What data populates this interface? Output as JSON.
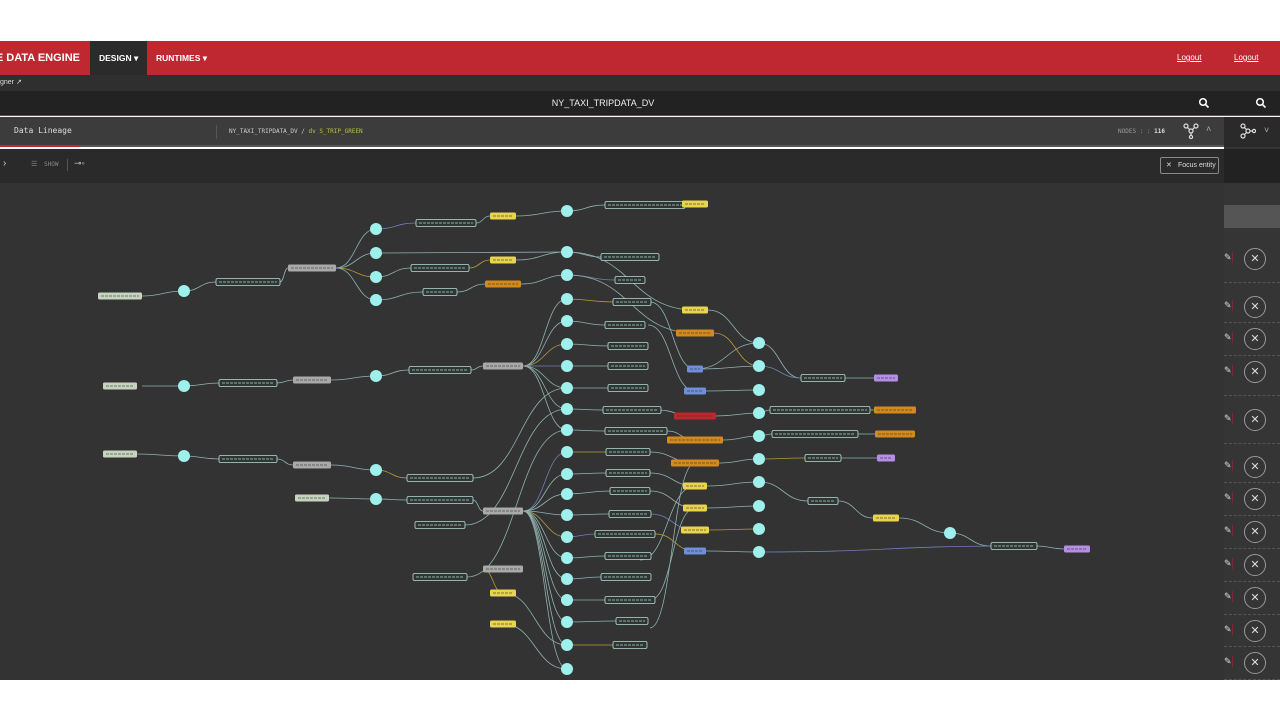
{
  "header": {
    "brand": "AGILE DATA ENGINE",
    "nav": [
      {
        "label": "DESIGN ▾",
        "active": true
      },
      {
        "label": "RUNTIMES ▾",
        "active": false
      }
    ],
    "logout_links": [
      "Logout",
      "Logout"
    ]
  },
  "subbar": {
    "text": "gner"
  },
  "titlebar": {
    "title": "NY_TAXI_TRIPDATA_DV"
  },
  "lineage": {
    "tab": "Data Lineage",
    "breadcrumb_root": "NY_TAXI_TRIPDATA_DV",
    "breadcrumb_sep": " / ",
    "breadcrumb_leaf": "dv S_TRIP_GREEN",
    "nodes_label": "NODES : : ",
    "nodes_count": "116"
  },
  "toolbar": {
    "show_label": "SHOW",
    "focus_label": "Focus entity"
  },
  "colors": {
    "header": "#bf2731",
    "canvas": "#333333",
    "circle": "#9ef0ec",
    "source": "#c5d4bf",
    "yellow": "#e8d44d",
    "orange": "#d48a1a",
    "blue": "#6f8fd8",
    "red": "#c0272d",
    "purple": "#b58ee8"
  },
  "right_panel": {
    "row_count": 12
  }
}
